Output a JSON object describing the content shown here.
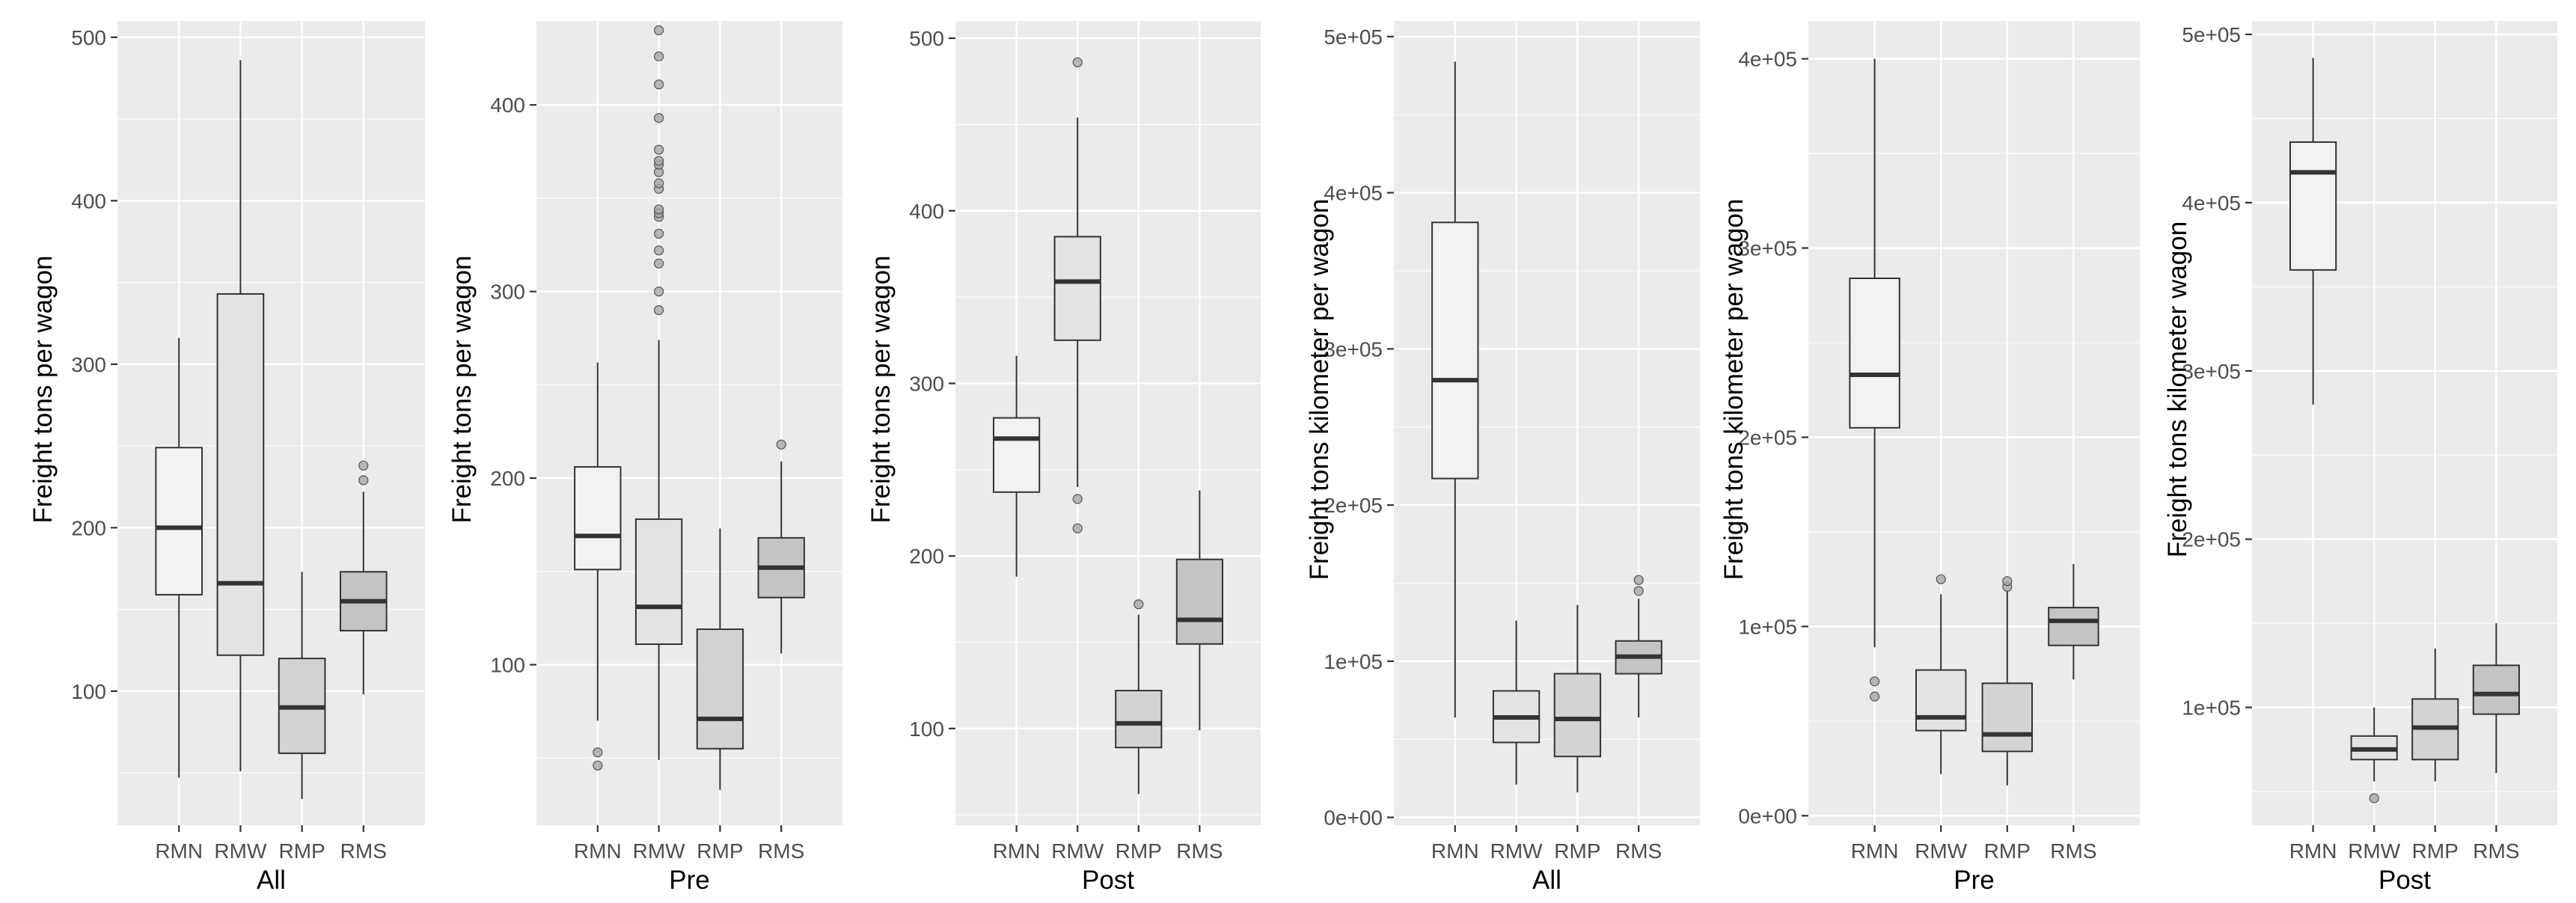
{
  "chart_data": [
    {
      "type": "boxplot",
      "xlabel": "All",
      "ylabel": "Freight tons per wagon",
      "ylim": [
        18,
        510
      ],
      "yticks": [
        100,
        200,
        300,
        400,
        500
      ],
      "ytick_labels": [
        "100",
        "200",
        "300",
        "400",
        "500"
      ],
      "categories": [
        "RMN",
        "RMW",
        "RMP",
        "RMS"
      ],
      "fills": [
        "#f2f2f2",
        "#e3e3e3",
        "#d3d3d3",
        "#c4c4c4"
      ],
      "boxes": [
        {
          "lower_whisker": 47,
          "q1": 159,
          "median": 200,
          "q3": 249,
          "upper_whisker": 316,
          "outliers": []
        },
        {
          "lower_whisker": 51,
          "q1": 122,
          "median": 166,
          "q3": 343,
          "upper_whisker": 486,
          "outliers": []
        },
        {
          "lower_whisker": 34,
          "q1": 62,
          "median": 90,
          "q3": 120,
          "upper_whisker": 173,
          "outliers": []
        },
        {
          "lower_whisker": 98,
          "q1": 137,
          "median": 155,
          "q3": 173,
          "upper_whisker": 222,
          "outliers": [
            229,
            238
          ]
        }
      ]
    },
    {
      "type": "boxplot",
      "xlabel": "Pre",
      "ylabel": "Freight tons per wagon",
      "ylim": [
        14,
        445
      ],
      "yticks": [
        100,
        200,
        300,
        400
      ],
      "ytick_labels": [
        "100",
        "200",
        "300",
        "400"
      ],
      "categories": [
        "RMN",
        "RMW",
        "RMP",
        "RMS"
      ],
      "fills": [
        "#f2f2f2",
        "#e3e3e3",
        "#d3d3d3",
        "#c4c4c4"
      ],
      "boxes": [
        {
          "lower_whisker": 70,
          "q1": 151,
          "median": 169,
          "q3": 206,
          "upper_whisker": 262,
          "outliers": [
            53,
            46
          ]
        },
        {
          "lower_whisker": 49,
          "q1": 111,
          "median": 131,
          "q3": 178,
          "upper_whisker": 274,
          "outliers": [
            290,
            300,
            315,
            322,
            331,
            340,
            342,
            344,
            355,
            358,
            364,
            368,
            370,
            376,
            393,
            411,
            426,
            440
          ]
        },
        {
          "lower_whisker": 33,
          "q1": 55,
          "median": 71,
          "q3": 119,
          "upper_whisker": 173,
          "outliers": []
        },
        {
          "lower_whisker": 106,
          "q1": 136,
          "median": 152,
          "q3": 168,
          "upper_whisker": 209,
          "outliers": [
            218
          ]
        }
      ]
    },
    {
      "type": "boxplot",
      "xlabel": "Post",
      "ylabel": "Freight tons per wagon",
      "ylim": [
        44,
        510
      ],
      "yticks": [
        100,
        200,
        300,
        400,
        500
      ],
      "ytick_labels": [
        "100",
        "200",
        "300",
        "400",
        "500"
      ],
      "categories": [
        "RMN",
        "RMW",
        "RMP",
        "RMS"
      ],
      "fills": [
        "#f2f2f2",
        "#e3e3e3",
        "#d3d3d3",
        "#c4c4c4"
      ],
      "boxes": [
        {
          "lower_whisker": 188,
          "q1": 237,
          "median": 268,
          "q3": 280,
          "upper_whisker": 316,
          "outliers": []
        },
        {
          "lower_whisker": 240,
          "q1": 325,
          "median": 359,
          "q3": 385,
          "upper_whisker": 454,
          "outliers": [
            216,
            233,
            486
          ]
        },
        {
          "lower_whisker": 62,
          "q1": 89,
          "median": 103,
          "q3": 122,
          "upper_whisker": 166,
          "outliers": [
            172
          ]
        },
        {
          "lower_whisker": 99,
          "q1": 149,
          "median": 163,
          "q3": 198,
          "upper_whisker": 238,
          "outliers": []
        }
      ]
    },
    {
      "type": "boxplot",
      "xlabel": "All",
      "ylabel": "Freight tons kilometer per wagon",
      "ylim": [
        -5000,
        510000
      ],
      "yticks": [
        0,
        100000,
        200000,
        300000,
        400000,
        500000
      ],
      "ytick_labels": [
        "0e+00",
        "1e+05",
        "2e+05",
        "3e+05",
        "4e+05",
        "5e+05"
      ],
      "categories": [
        "RMN",
        "RMW",
        "RMP",
        "RMS"
      ],
      "fills": [
        "#f2f2f2",
        "#e3e3e3",
        "#d3d3d3",
        "#c4c4c4"
      ],
      "boxes": [
        {
          "lower_whisker": 64000,
          "q1": 217000,
          "median": 280000,
          "q3": 381000,
          "upper_whisker": 484000,
          "outliers": []
        },
        {
          "lower_whisker": 21000,
          "q1": 48000,
          "median": 64000,
          "q3": 81000,
          "upper_whisker": 126000,
          "outliers": []
        },
        {
          "lower_whisker": 16000,
          "q1": 39000,
          "median": 63000,
          "q3": 92000,
          "upper_whisker": 136000,
          "outliers": []
        },
        {
          "lower_whisker": 64000,
          "q1": 92000,
          "median": 103000,
          "q3": 113000,
          "upper_whisker": 140000,
          "outliers": [
            145000,
            152000
          ]
        }
      ]
    },
    {
      "type": "boxplot",
      "xlabel": "Pre",
      "ylabel": "Freight tons kilometer per wagon",
      "ylim": [
        -5000,
        420000
      ],
      "yticks": [
        0,
        100000,
        200000,
        300000,
        400000
      ],
      "ytick_labels": [
        "0e+00",
        "1e+05",
        "2e+05",
        "3e+05",
        "4e+05"
      ],
      "categories": [
        "RMN",
        "RMW",
        "RMP",
        "RMS"
      ],
      "fills": [
        "#f2f2f2",
        "#e3e3e3",
        "#d3d3d3",
        "#c4c4c4"
      ],
      "boxes": [
        {
          "lower_whisker": 89000,
          "q1": 205000,
          "median": 233000,
          "q3": 284000,
          "upper_whisker": 400000,
          "outliers": [
            63000,
            71000
          ]
        },
        {
          "lower_whisker": 22000,
          "q1": 45000,
          "median": 52000,
          "q3": 77000,
          "upper_whisker": 117000,
          "outliers": [
            125000
          ]
        },
        {
          "lower_whisker": 16000,
          "q1": 34000,
          "median": 43000,
          "q3": 70000,
          "upper_whisker": 119000,
          "outliers": [
            121000,
            124000
          ]
        },
        {
          "lower_whisker": 72000,
          "q1": 90000,
          "median": 103000,
          "q3": 110000,
          "upper_whisker": 133000,
          "outliers": []
        }
      ]
    },
    {
      "type": "boxplot",
      "xlabel": "Post",
      "ylabel": "Freight tons kilometer wagon",
      "ylim": [
        30000,
        508000
      ],
      "yticks": [
        100000,
        200000,
        300000,
        400000,
        500000
      ],
      "ytick_labels": [
        "1e+05",
        "2e+05",
        "3e+05",
        "4e+05",
        "5e+05"
      ],
      "categories": [
        "RMN",
        "RMW",
        "RMP",
        "RMS"
      ],
      "fills": [
        "#f2f2f2",
        "#e3e3e3",
        "#d3d3d3",
        "#c4c4c4"
      ],
      "boxes": [
        {
          "lower_whisker": 280000,
          "q1": 360000,
          "median": 418000,
          "q3": 436000,
          "upper_whisker": 486000,
          "outliers": []
        },
        {
          "lower_whisker": 56000,
          "q1": 69000,
          "median": 75000,
          "q3": 83000,
          "upper_whisker": 100000,
          "outliers": [
            46000
          ]
        },
        {
          "lower_whisker": 56000,
          "q1": 69000,
          "median": 88000,
          "q3": 105000,
          "upper_whisker": 135000,
          "outliers": []
        },
        {
          "lower_whisker": 61000,
          "q1": 96000,
          "median": 108000,
          "q3": 125000,
          "upper_whisker": 150000,
          "outliers": []
        }
      ]
    }
  ]
}
